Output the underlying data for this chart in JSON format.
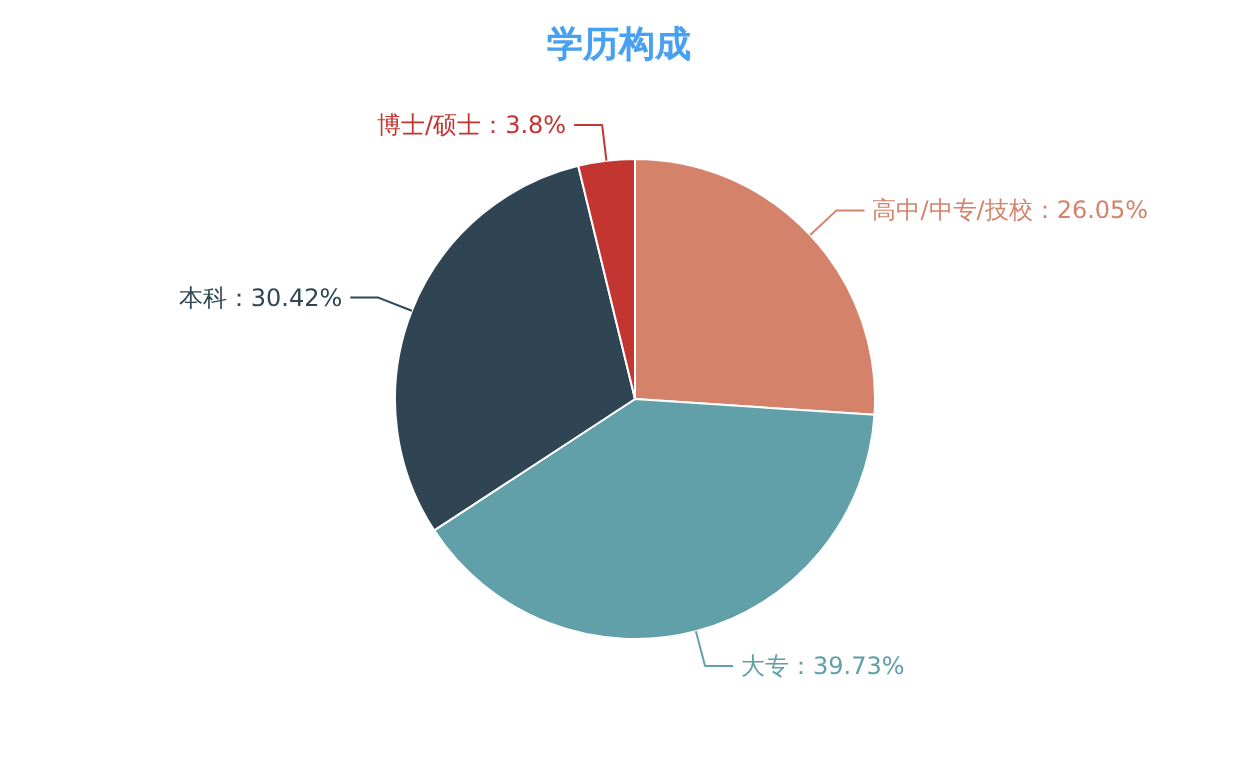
{
  "chart_data": {
    "type": "pie",
    "title": "学历构成",
    "categories": [
      "高中/中专/技校",
      "大专",
      "本科",
      "博士/硕士"
    ],
    "values": [
      26.05,
      39.73,
      30.42,
      3.8
    ],
    "value_labels": [
      "26.05%",
      "39.73%",
      "30.42%",
      "3.8%"
    ],
    "colors": [
      "#d4826a",
      "#61a0a8",
      "#2f4554",
      "#c23531"
    ]
  }
}
